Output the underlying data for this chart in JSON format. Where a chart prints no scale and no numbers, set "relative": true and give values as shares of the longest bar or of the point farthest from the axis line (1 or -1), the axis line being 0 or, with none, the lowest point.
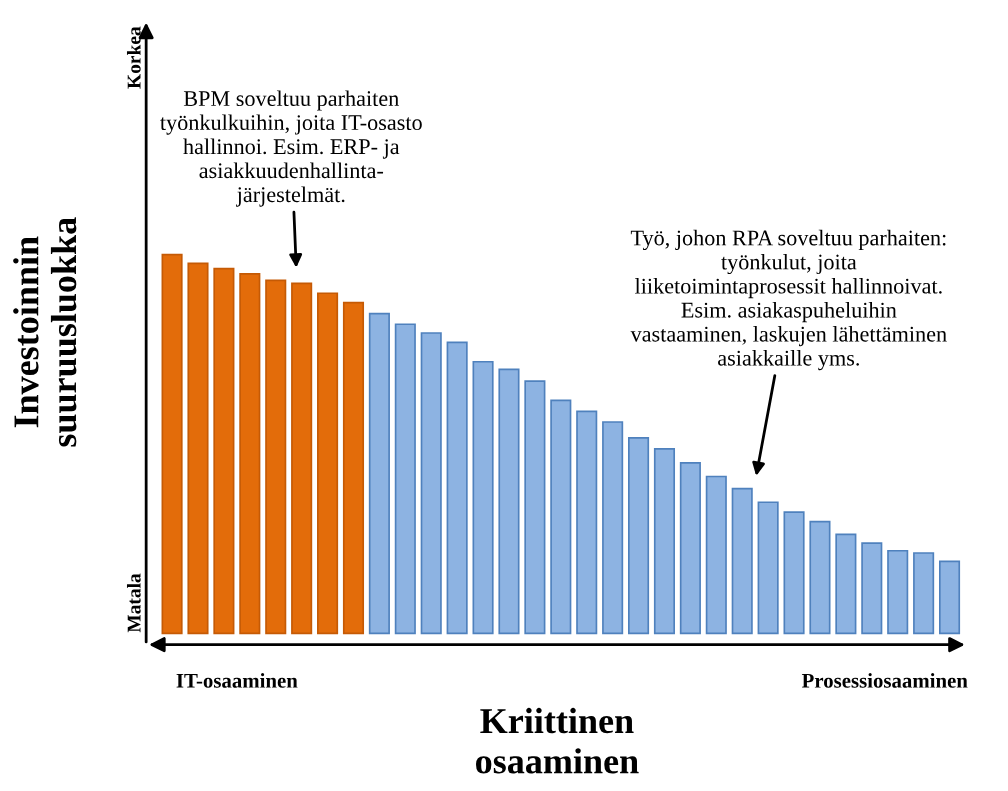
{
  "chart_data": {
    "type": "bar",
    "relative": true,
    "ylabel": "Investoinnin suuruusluokka",
    "xlabel": "Kriittinen\nosaaminen",
    "categories": [
      null,
      null,
      null,
      null,
      null,
      null,
      null,
      null,
      null,
      null,
      null,
      null,
      null,
      null,
      null,
      null,
      null,
      null,
      null,
      null,
      null,
      null,
      null,
      null,
      null,
      null,
      null,
      null,
      null,
      null,
      null
    ],
    "values": [
      1,
      0.977,
      0.963,
      0.949,
      0.932,
      0.924,
      0.898,
      0.873,
      0.844,
      0.816,
      0.793,
      0.768,
      0.717,
      0.697,
      0.666,
      0.615,
      0.586,
      0.558,
      0.516,
      0.487,
      0.45,
      0.414,
      0.382,
      0.346,
      0.32,
      0.295,
      0.261,
      0.238,
      0.218,
      0.212,
      0.19
    ],
    "colors": [
      "#e36c0a",
      "#e36c0a",
      "#e36c0a",
      "#e36c0a",
      "#e36c0a",
      "#e36c0a",
      "#e36c0a",
      "#e36c0a",
      "#8db3e2",
      "#8db3e2",
      "#8db3e2",
      "#8db3e2",
      "#8db3e2",
      "#8db3e2",
      "#8db3e2",
      "#8db3e2",
      "#8db3e2",
      "#8db3e2",
      "#8db3e2",
      "#8db3e2",
      "#8db3e2",
      "#8db3e2",
      "#8db3e2",
      "#8db3e2",
      "#8db3e2",
      "#8db3e2",
      "#8db3e2",
      "#8db3e2",
      "#8db3e2",
      "#8db3e2",
      "#8db3e2"
    ],
    "annotations": [
      "BPM soveltuu parhaiten\ntyönkulkuihin, joita IT-osasto\nhallinnoi. Esim. ERP- ja\nasiakkuudenhallinta-\njärjestelmät.",
      "Työ, johon RPA soveltuu parhaiten:\ntyönkulut, joita\nliiketoimintaprosessit hallinnoivat.\nEsim. asiakaspuheluihin\nvastaaminen, laskujen lähettäminen\nasiakkaille yms.",
      "Korkea",
      "Matala",
      "IT-osaaminen",
      "Prosessiosaaminen"
    ],
    "grid": false,
    "legend": false
  }
}
